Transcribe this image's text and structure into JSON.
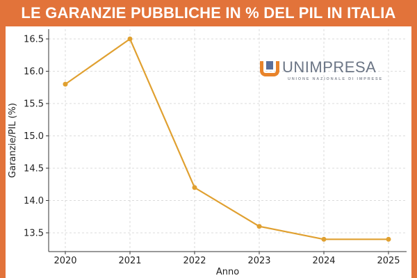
{
  "header": {
    "title": "LE GARANZIE PUBBLICHE IN % DEL PIL IN ITALIA"
  },
  "logo": {
    "name": "UNIMPRESA",
    "subtitle": "UNIONE NAZIONALE DI IMPRESE",
    "color": "#e8832a"
  },
  "chart_data": {
    "type": "line",
    "title": "LE GARANZIE PUBBLICHE IN % DEL PIL IN ITALIA",
    "xlabel": "Anno",
    "ylabel": "Garanzie/PIL (%)",
    "x": [
      "2020",
      "2021",
      "2022",
      "2023",
      "2024",
      "2025"
    ],
    "series": [
      {
        "values": [
          15.8,
          16.5,
          14.2,
          13.6,
          13.4,
          13.4
        ],
        "color": "#e0a030"
      }
    ],
    "yticks": [
      "13.5",
      "14.0",
      "14.5",
      "15.0",
      "15.5",
      "16.0",
      "16.5"
    ],
    "ylim": [
      13.3,
      16.6
    ],
    "grid": true,
    "legend": "none"
  }
}
